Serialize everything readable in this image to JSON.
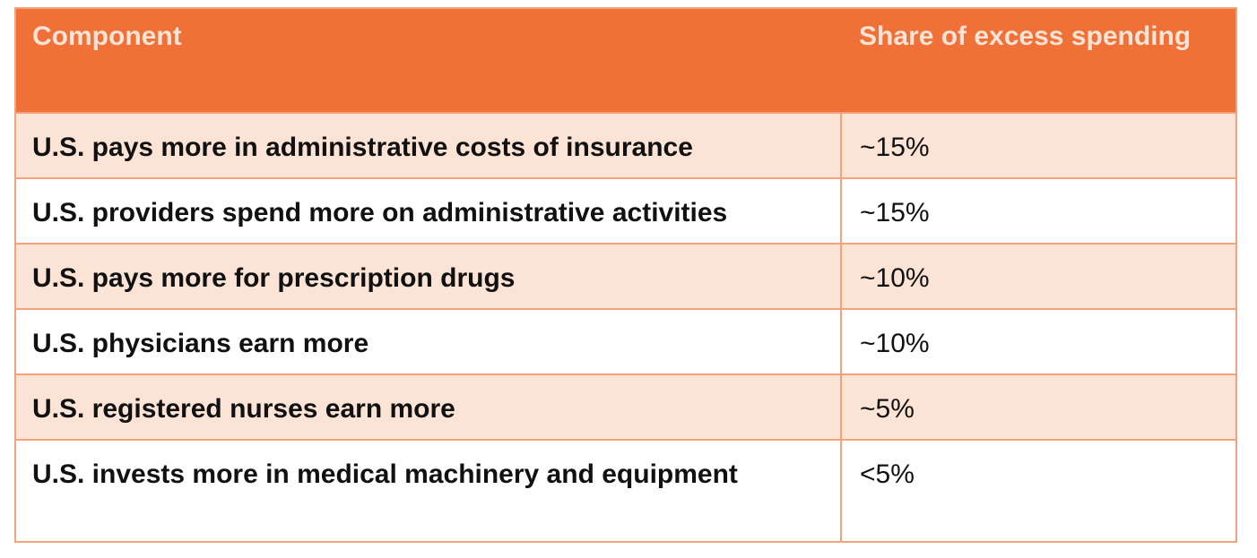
{
  "table": {
    "headers": {
      "component": "Component",
      "share": "Share of excess spending"
    },
    "rows": [
      {
        "component": "U.S. pays more in administrative costs of insurance",
        "share": "~15%"
      },
      {
        "component": "U.S. providers spend more on administrative activities",
        "share": "~15%"
      },
      {
        "component": "U.S. pays more for prescription drugs",
        "share": "~10%"
      },
      {
        "component": "U.S. physicians earn more",
        "share": "~10%"
      },
      {
        "component": "U.S. registered nurses earn more",
        "share": "~5%"
      },
      {
        "component": "U.S. invests more in medical machinery and equipment",
        "share": "<5%"
      }
    ]
  },
  "colors": {
    "header_background": "#f07138",
    "header_text": "#fbe3d6",
    "row_tint": "#fbe3d6",
    "border": "#f4a27c"
  }
}
